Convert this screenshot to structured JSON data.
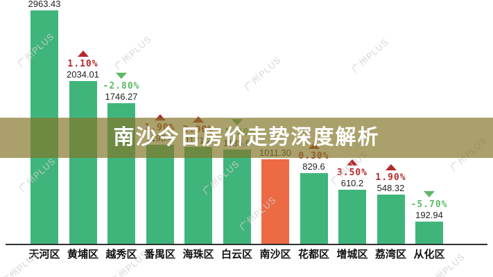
{
  "title_overlay": {
    "text": "南沙今日房价走势深度解析"
  },
  "watermark_text": "广州PLUS",
  "chart_data": {
    "type": "bar",
    "title": "",
    "xlabel": "",
    "ylabel": "",
    "ylim": [
      0,
      3100
    ],
    "grid": false,
    "legend": "none",
    "categories": [
      "天河区",
      "黄埔区",
      "越秀区",
      "番禺区",
      "海珠区",
      "白云区",
      "南沙区",
      "花都区",
      "增城区",
      "荔湾区",
      "从化区"
    ],
    "series": [
      {
        "name": "房价",
        "values": [
          2963.43,
          2034.01,
          1746.27,
          1198.4,
          1171.2,
          1135.6,
          1011.3,
          829.6,
          610.2,
          548.32,
          192.94
        ]
      }
    ],
    "value_labels": [
      "2963.43",
      "2034.01",
      "1746.27",
      "1198.4",
      "1171.2",
      "1135.6",
      "1011.30",
      "829.6",
      "610.2",
      "548.32",
      "192.94"
    ],
    "changes": [
      null,
      {
        "pct": "1.10%",
        "dir": "up"
      },
      {
        "pct": "-2.80%",
        "dir": "down"
      },
      {
        "pct": "1.90%",
        "dir": "up"
      },
      {
        "pct": "2.00%",
        "dir": "up"
      },
      {
        "pct": "-1.20%",
        "dir": "down"
      },
      null,
      {
        "pct": "0.30%",
        "dir": "up"
      },
      {
        "pct": "3.50%",
        "dir": "up"
      },
      {
        "pct": "1.90%",
        "dir": "up"
      },
      {
        "pct": "-5.70%",
        "dir": "down"
      }
    ],
    "highlight_index": 6,
    "colors": {
      "bar": "#3fb57b",
      "highlight": "#ec6a44",
      "up_text": "#b5282a",
      "down_text": "#5db867",
      "axis": "#2e2e2e",
      "band": "rgba(131,118,41,0.69)",
      "title_text": "#ffffff",
      "watermark": "#cfcfcf"
    }
  }
}
